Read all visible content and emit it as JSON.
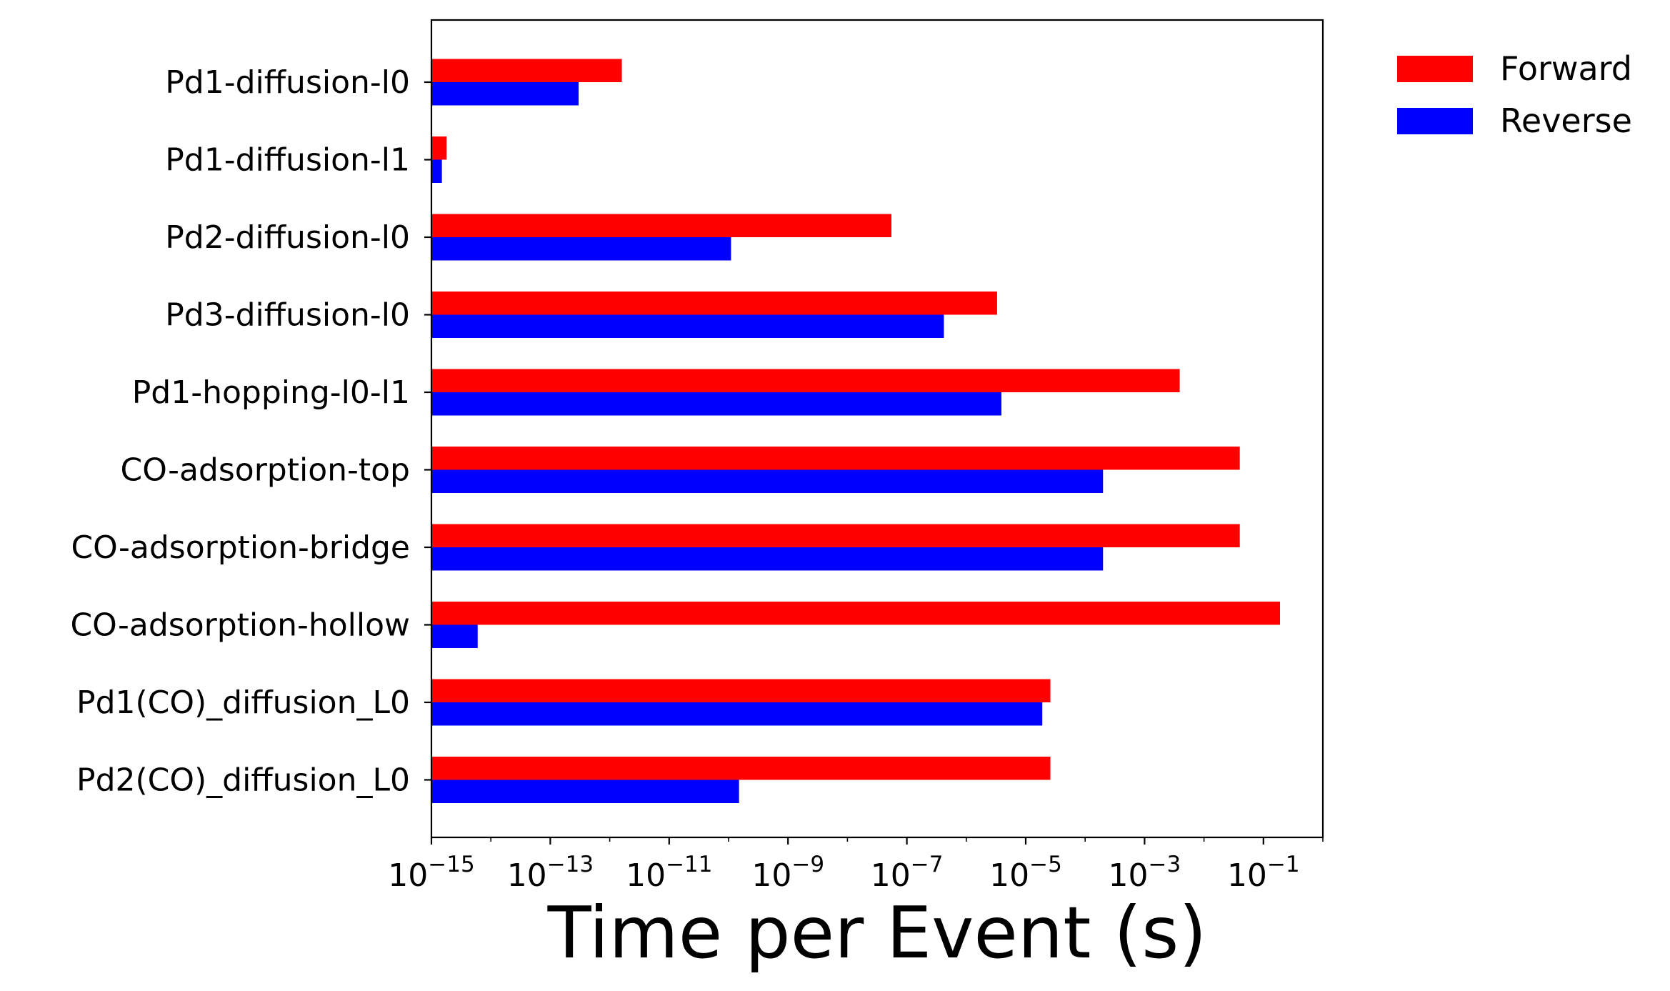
{
  "chart_data": {
    "type": "bar",
    "orientation": "horizontal",
    "xscale": "log",
    "xlim": [
      1e-15,
      1.0
    ],
    "xlabel": "Time per Event (s)",
    "xtick_values": [
      1e-15,
      1e-13,
      1e-11,
      1e-09,
      1e-07,
      1e-05,
      0.001,
      0.1
    ],
    "xtick_labels": [
      {
        "base": "10",
        "exp": "−15"
      },
      {
        "base": "10",
        "exp": "−13"
      },
      {
        "base": "10",
        "exp": "−11"
      },
      {
        "base": "10",
        "exp": "−9"
      },
      {
        "base": "10",
        "exp": "−7"
      },
      {
        "base": "10",
        "exp": "−5"
      },
      {
        "base": "10",
        "exp": "−3"
      },
      {
        "base": "10",
        "exp": "−1"
      }
    ],
    "categories": [
      "Pd1-diffusion-l0",
      "Pd1-diffusion-l1",
      "Pd2-diffusion-l0",
      "Pd3-diffusion-l0",
      "Pd1-hopping-l0-l1",
      "CO-adsorption-top",
      "CO-adsorption-bridge",
      "CO-adsorption-hollow",
      "Pd1(CO)_diffusion_L0",
      "Pd2(CO)_diffusion_L0"
    ],
    "series": [
      {
        "name": "Forward",
        "color": "#ff0000",
        "values": [
          1.6e-12,
          1.8e-15,
          5.5e-08,
          3.3e-06,
          0.0039,
          0.04,
          0.04,
          0.19,
          2.6e-05,
          2.6e-05
        ]
      },
      {
        "name": "Reverse",
        "color": "#0000ff",
        "values": [
          3e-13,
          1.5e-15,
          1.1e-10,
          4.2e-07,
          3.9e-06,
          0.0002,
          0.0002,
          6e-15,
          1.9e-05,
          1.5e-10
        ]
      }
    ],
    "grid": false,
    "legend_position": "outside-top-right"
  }
}
